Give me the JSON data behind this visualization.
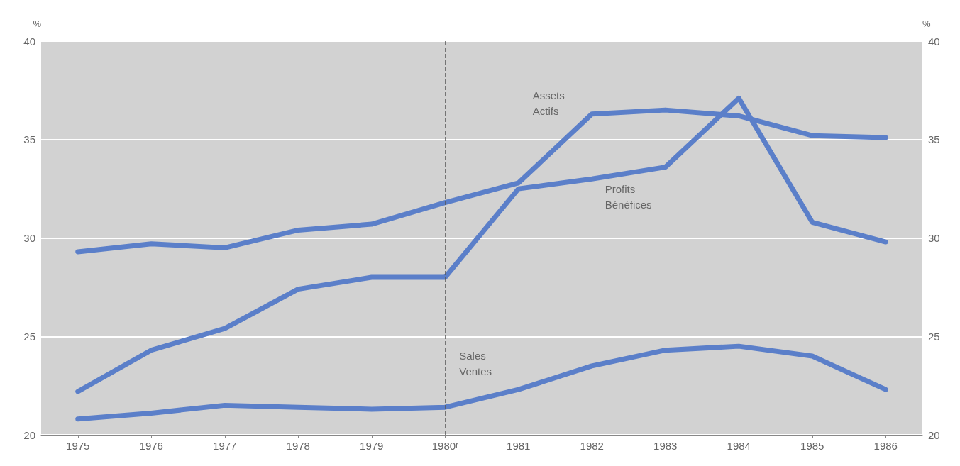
{
  "chart_data": {
    "type": "line",
    "ylabel": "%",
    "y2label": "%",
    "categories": [
      "1975",
      "1976",
      "1977",
      "1978",
      "1979",
      "1980ʳ",
      "1981",
      "1982",
      "1983",
      "1984",
      "1985",
      "1986"
    ],
    "series": [
      {
        "name": "Assets\nActifs",
        "color": "#5b7fc9",
        "values": [
          29.3,
          29.7,
          29.5,
          30.4,
          30.7,
          31.8,
          32.8,
          36.3,
          36.5,
          36.2,
          35.2,
          35.1
        ]
      },
      {
        "name": "Profits\nBénéfices",
        "color": "#5b7fc9",
        "values": [
          22.2,
          24.3,
          25.4,
          27.4,
          28.0,
          28.0,
          32.5,
          33.0,
          33.6,
          37.1,
          30.8,
          29.8
        ]
      },
      {
        "name": "Sales\nVentes",
        "color": "#5b7fc9",
        "values": [
          20.8,
          21.1,
          21.5,
          21.4,
          21.3,
          21.4,
          22.3,
          23.5,
          24.3,
          24.5,
          24.0,
          22.3
        ]
      }
    ],
    "ylim": [
      20,
      40
    ],
    "yticks": [
      20,
      25,
      30,
      35,
      40
    ],
    "y2lim": [
      20,
      40
    ],
    "y2ticks": [
      20,
      25,
      30,
      35,
      40
    ],
    "grid": "y",
    "legend": false,
    "marker": "none",
    "line_style": "solid",
    "ref_lines": [
      {
        "axis": "x",
        "value": "1980ʳ",
        "color": "#555555",
        "line_style": "dashed"
      }
    ]
  }
}
